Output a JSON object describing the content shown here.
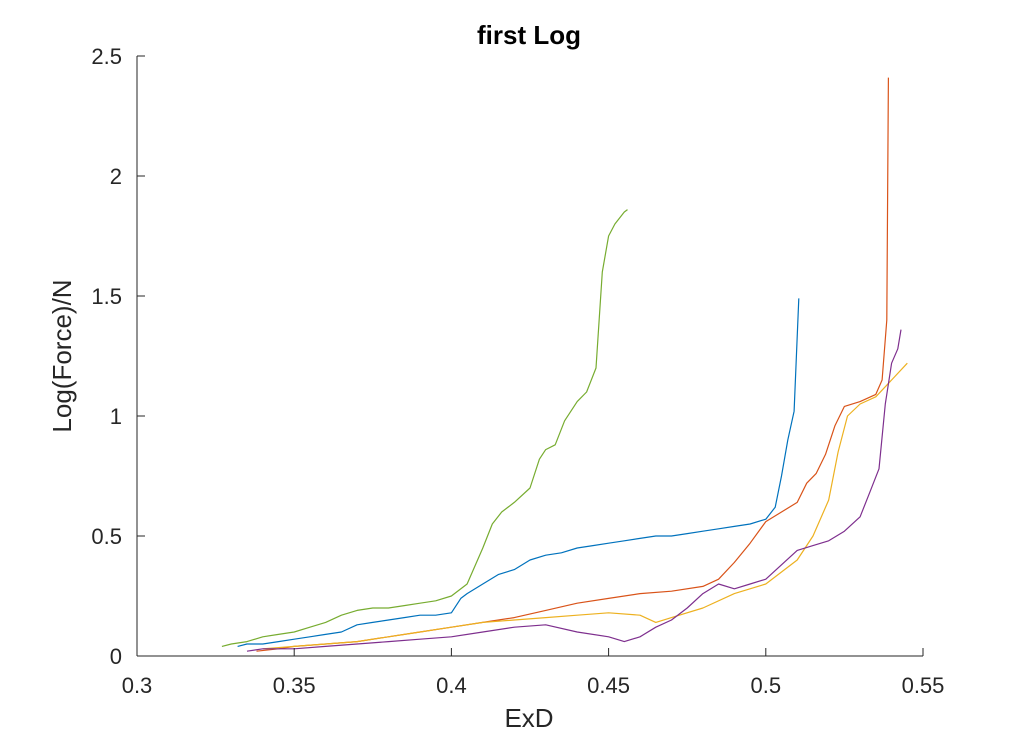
{
  "chart_data": {
    "type": "line",
    "title": "first Log",
    "xlabel": "ExD",
    "ylabel": "Log(Force)/N",
    "xlim": [
      0.3,
      0.55
    ],
    "ylim": [
      0,
      2.5
    ],
    "xticks": [
      0.3,
      0.35,
      0.4,
      0.45,
      0.5,
      0.55
    ],
    "yticks": [
      0,
      0.5,
      1,
      1.5,
      2,
      2.5
    ],
    "xtick_labels": [
      "0.3",
      "0.35",
      "0.4",
      "0.45",
      "0.5",
      "0.55"
    ],
    "ytick_labels": [
      "0",
      "0.5",
      "1",
      "1.5",
      "2",
      "2.5"
    ],
    "grid": false,
    "legend": "none",
    "series": [
      {
        "color": "#0072BD",
        "x": [
          0.332,
          0.335,
          0.34,
          0.345,
          0.35,
          0.355,
          0.36,
          0.365,
          0.37,
          0.375,
          0.38,
          0.385,
          0.39,
          0.395,
          0.4,
          0.403,
          0.405,
          0.41,
          0.415,
          0.42,
          0.425,
          0.43,
          0.435,
          0.44,
          0.445,
          0.45,
          0.455,
          0.46,
          0.465,
          0.47,
          0.475,
          0.48,
          0.485,
          0.49,
          0.495,
          0.5,
          0.503,
          0.505,
          0.507,
          0.509,
          0.5105
        ],
        "y": [
          0.04,
          0.05,
          0.05,
          0.06,
          0.07,
          0.08,
          0.09,
          0.1,
          0.13,
          0.14,
          0.15,
          0.16,
          0.17,
          0.17,
          0.18,
          0.24,
          0.26,
          0.3,
          0.34,
          0.36,
          0.4,
          0.42,
          0.43,
          0.45,
          0.46,
          0.47,
          0.48,
          0.49,
          0.5,
          0.5,
          0.51,
          0.52,
          0.53,
          0.54,
          0.55,
          0.57,
          0.62,
          0.75,
          0.9,
          1.02,
          1.49
        ]
      },
      {
        "color": "#D95319",
        "x": [
          0.338,
          0.345,
          0.35,
          0.36,
          0.37,
          0.38,
          0.39,
          0.4,
          0.41,
          0.42,
          0.43,
          0.44,
          0.45,
          0.46,
          0.47,
          0.48,
          0.485,
          0.49,
          0.495,
          0.5,
          0.505,
          0.51,
          0.513,
          0.516,
          0.519,
          0.522,
          0.525,
          0.53,
          0.535,
          0.537,
          0.5385,
          0.539
        ],
        "y": [
          0.02,
          0.03,
          0.04,
          0.05,
          0.06,
          0.08,
          0.1,
          0.12,
          0.14,
          0.16,
          0.19,
          0.22,
          0.24,
          0.26,
          0.27,
          0.29,
          0.32,
          0.39,
          0.47,
          0.56,
          0.6,
          0.64,
          0.72,
          0.76,
          0.84,
          0.96,
          1.04,
          1.06,
          1.09,
          1.15,
          1.4,
          2.41
        ]
      },
      {
        "color": "#EDB120",
        "x": [
          0.34,
          0.35,
          0.36,
          0.37,
          0.38,
          0.39,
          0.4,
          0.41,
          0.42,
          0.43,
          0.44,
          0.45,
          0.46,
          0.465,
          0.47,
          0.48,
          0.49,
          0.5,
          0.505,
          0.51,
          0.515,
          0.52,
          0.523,
          0.526,
          0.53,
          0.535,
          0.54,
          0.545
        ],
        "y": [
          0.03,
          0.04,
          0.05,
          0.06,
          0.08,
          0.1,
          0.12,
          0.14,
          0.15,
          0.16,
          0.17,
          0.18,
          0.17,
          0.14,
          0.16,
          0.2,
          0.26,
          0.3,
          0.35,
          0.4,
          0.5,
          0.65,
          0.85,
          1.0,
          1.05,
          1.08,
          1.15,
          1.22
        ]
      },
      {
        "color": "#7E2F8E",
        "x": [
          0.335,
          0.34,
          0.35,
          0.36,
          0.37,
          0.38,
          0.39,
          0.4,
          0.41,
          0.42,
          0.43,
          0.44,
          0.45,
          0.455,
          0.46,
          0.465,
          0.47,
          0.475,
          0.48,
          0.485,
          0.49,
          0.495,
          0.5,
          0.505,
          0.51,
          0.515,
          0.52,
          0.525,
          0.53,
          0.533,
          0.536,
          0.538,
          0.54,
          0.542,
          0.543
        ],
        "y": [
          0.02,
          0.03,
          0.03,
          0.04,
          0.05,
          0.06,
          0.07,
          0.08,
          0.1,
          0.12,
          0.13,
          0.1,
          0.08,
          0.06,
          0.08,
          0.12,
          0.15,
          0.2,
          0.26,
          0.3,
          0.28,
          0.3,
          0.32,
          0.38,
          0.44,
          0.46,
          0.48,
          0.52,
          0.58,
          0.68,
          0.78,
          1.05,
          1.22,
          1.28,
          1.36
        ]
      },
      {
        "color": "#77AC30",
        "x": [
          0.327,
          0.33,
          0.335,
          0.34,
          0.345,
          0.35,
          0.355,
          0.36,
          0.365,
          0.37,
          0.375,
          0.38,
          0.385,
          0.39,
          0.395,
          0.4,
          0.405,
          0.41,
          0.413,
          0.416,
          0.42,
          0.425,
          0.428,
          0.43,
          0.433,
          0.436,
          0.44,
          0.443,
          0.446,
          0.448,
          0.45,
          0.452,
          0.455,
          0.456
        ],
        "y": [
          0.04,
          0.05,
          0.06,
          0.08,
          0.09,
          0.1,
          0.12,
          0.14,
          0.17,
          0.19,
          0.2,
          0.2,
          0.21,
          0.22,
          0.23,
          0.25,
          0.3,
          0.45,
          0.55,
          0.6,
          0.64,
          0.7,
          0.82,
          0.86,
          0.88,
          0.98,
          1.06,
          1.1,
          1.2,
          1.6,
          1.75,
          1.8,
          1.85,
          1.86
        ]
      }
    ]
  }
}
